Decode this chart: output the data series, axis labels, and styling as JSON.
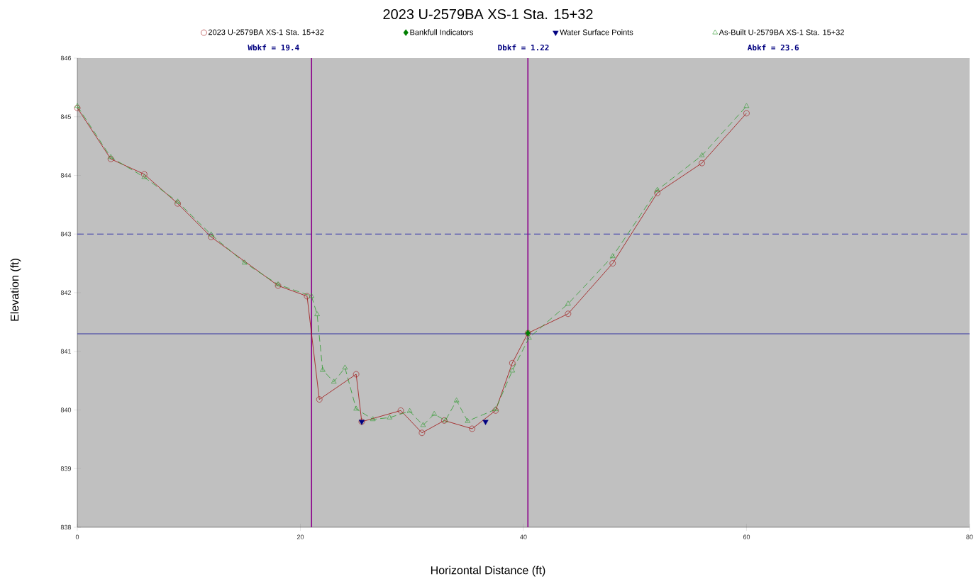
{
  "chart_data": {
    "type": "line",
    "title": "2023 U-2579BA XS-1 Sta. 15+32",
    "xlabel": "Horizontal Distance (ft)",
    "ylabel": "Elevation (ft)",
    "xlim": [
      0,
      80
    ],
    "ylim": [
      838,
      846
    ],
    "xticks": [
      0,
      20,
      40,
      60,
      80
    ],
    "yticks": [
      838,
      839,
      840,
      841,
      842,
      843,
      844,
      845,
      846
    ],
    "legend": "top",
    "annotations": [
      "Wbkf = 19.4",
      "Dbkf = 1.22",
      "Abkf = 23.6"
    ],
    "ref_lines": [
      {
        "axis": "y",
        "value": 843.0,
        "color": "#3333aa",
        "line_style": "dashed"
      },
      {
        "axis": "y",
        "value": 841.3,
        "color": "#3030a0",
        "line_style": "solid"
      },
      {
        "axis": "x",
        "value": 21.0,
        "color": "#8b008b",
        "line_style": "solid"
      },
      {
        "axis": "x",
        "value": 40.4,
        "color": "#8b008b",
        "line_style": "solid"
      }
    ],
    "series": [
      {
        "name": "2023 U-2579BA XS-1 Sta. 15+32",
        "color": "#a01010",
        "marker": "circle",
        "line_style": "solid",
        "x": [
          0,
          3.0,
          6.0,
          9.0,
          12.0,
          18.0,
          20.6,
          21.7,
          25.0,
          25.5,
          29.0,
          30.9,
          32.9,
          35.4,
          37.5,
          39.0,
          40.4,
          44.0,
          48.0,
          52.0,
          56.0,
          60.0
        ],
        "values": [
          845.15,
          844.28,
          844.02,
          843.52,
          842.95,
          842.12,
          841.94,
          840.18,
          840.61,
          839.8,
          839.99,
          839.61,
          839.82,
          839.68,
          839.99,
          840.8,
          841.31,
          841.64,
          842.5,
          843.7,
          844.21,
          845.06
        ]
      },
      {
        "name": "Bankfull Indicators",
        "type": "scatter",
        "color": "#007f00",
        "marker": "diamond",
        "x": [
          40.4
        ],
        "values": [
          841.31
        ]
      },
      {
        "name": "Water Surface Points",
        "type": "scatter",
        "color": "#000080",
        "marker": "triangle",
        "x": [
          25.5,
          36.6
        ],
        "values": [
          839.8,
          839.8
        ]
      },
      {
        "name": "As-Built U-2579BA XS-1 Sta. 15+32",
        "color": "#2e9a2e",
        "marker": "triangle",
        "line_style": "dashed",
        "x": [
          0,
          3.0,
          6.0,
          9.0,
          12.0,
          15.0,
          18.0,
          21.0,
          21.5,
          22.0,
          23.0,
          24.0,
          25.0,
          26.5,
          28.0,
          29.8,
          31.0,
          32.0,
          33.0,
          34.0,
          35.0,
          37.5,
          39.0,
          40.5,
          44.0,
          48.0,
          52.0,
          56.0,
          60.0
        ],
        "values": [
          845.18,
          844.31,
          843.97,
          843.55,
          842.99,
          842.51,
          842.14,
          841.94,
          841.63,
          840.68,
          840.48,
          840.72,
          840.02,
          839.84,
          839.87,
          839.98,
          839.74,
          839.93,
          839.82,
          840.16,
          839.81,
          840.01,
          840.67,
          841.23,
          841.81,
          842.62,
          843.75,
          844.34,
          845.18
        ]
      }
    ]
  }
}
